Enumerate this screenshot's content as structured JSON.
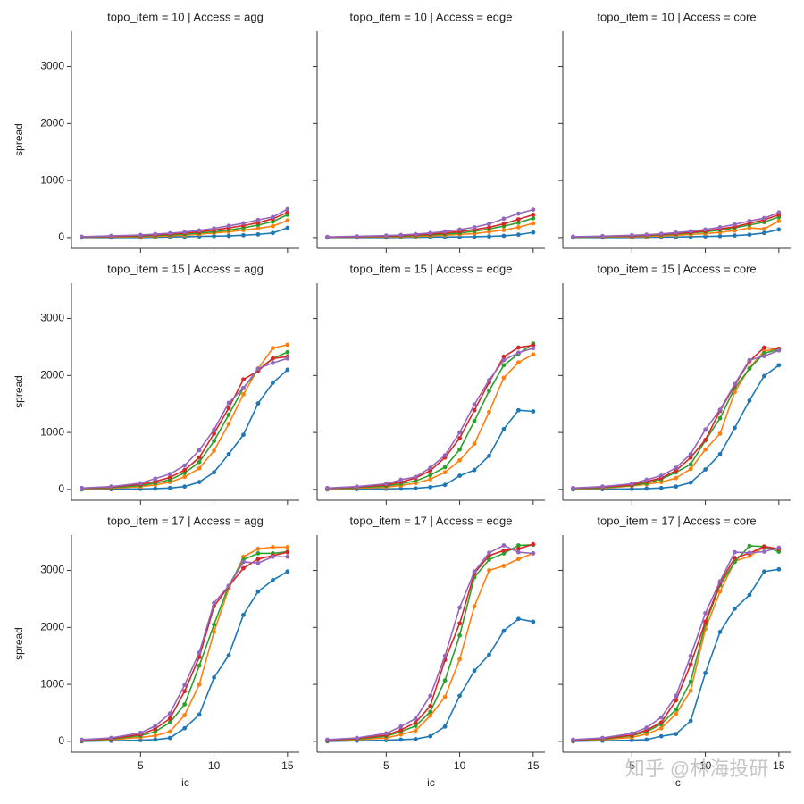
{
  "chart_data": [
    {
      "type": "line",
      "title": "topo_item = 10 | Access = agg",
      "ylabel": "spread",
      "x": [
        1,
        3,
        5,
        6,
        7,
        8,
        9,
        10,
        11,
        12,
        13,
        14,
        15
      ],
      "xlim": [
        0.3,
        15.8
      ],
      "ylim": [
        -190,
        3620
      ],
      "xticks": [
        5,
        10,
        15
      ],
      "yticks": [
        0,
        1000,
        2000,
        3000
      ],
      "series": [
        {
          "color": "#1f77b4",
          "values": [
            0,
            0,
            0,
            5,
            10,
            15,
            20,
            25,
            30,
            40,
            55,
            80,
            170
          ]
        },
        {
          "color": "#ff7f0e",
          "values": [
            5,
            10,
            15,
            20,
            30,
            40,
            60,
            80,
            100,
            130,
            160,
            200,
            300
          ]
        },
        {
          "color": "#2ca02c",
          "values": [
            5,
            15,
            25,
            35,
            45,
            60,
            80,
            100,
            130,
            170,
            220,
            280,
            400
          ]
        },
        {
          "color": "#d62728",
          "values": [
            10,
            20,
            35,
            45,
            60,
            80,
            100,
            130,
            170,
            210,
            260,
            330,
            440
          ]
        },
        {
          "color": "#9467bd",
          "values": [
            15,
            30,
            45,
            60,
            75,
            95,
            125,
            160,
            205,
            250,
            310,
            360,
            500
          ]
        }
      ]
    },
    {
      "type": "line",
      "title": "topo_item = 10 | Access = edge",
      "x": [
        1,
        3,
        5,
        6,
        7,
        8,
        9,
        10,
        11,
        12,
        13,
        14,
        15
      ],
      "xlim": [
        0.3,
        15.8
      ],
      "ylim": [
        -190,
        3620
      ],
      "xticks": [
        5,
        10,
        15
      ],
      "yticks": [
        0,
        1000,
        2000,
        3000
      ],
      "series": [
        {
          "color": "#1f77b4",
          "values": [
            0,
            0,
            0,
            3,
            5,
            8,
            10,
            12,
            15,
            20,
            30,
            50,
            90
          ]
        },
        {
          "color": "#ff7f0e",
          "values": [
            5,
            8,
            12,
            15,
            20,
            30,
            40,
            55,
            70,
            100,
            130,
            180,
            250
          ]
        },
        {
          "color": "#2ca02c",
          "values": [
            5,
            10,
            18,
            25,
            35,
            45,
            60,
            80,
            110,
            150,
            200,
            260,
            340
          ]
        },
        {
          "color": "#d62728",
          "values": [
            8,
            15,
            25,
            35,
            45,
            60,
            80,
            105,
            140,
            180,
            240,
            320,
            400
          ]
        },
        {
          "color": "#9467bd",
          "values": [
            12,
            22,
            35,
            45,
            60,
            80,
            105,
            140,
            180,
            240,
            330,
            420,
            490
          ]
        }
      ]
    },
    {
      "type": "line",
      "title": "topo_item = 10 | Access = core",
      "x": [
        1,
        3,
        5,
        6,
        7,
        8,
        9,
        10,
        11,
        12,
        13,
        14,
        15
      ],
      "xlim": [
        0.3,
        15.8
      ],
      "ylim": [
        -190,
        3620
      ],
      "xticks": [
        5,
        10,
        15
      ],
      "yticks": [
        0,
        1000,
        2000,
        3000
      ],
      "series": [
        {
          "color": "#1f77b4",
          "values": [
            0,
            0,
            0,
            5,
            8,
            10,
            15,
            20,
            25,
            35,
            50,
            80,
            140
          ]
        },
        {
          "color": "#ff7f0e",
          "values": [
            5,
            10,
            15,
            20,
            30,
            40,
            55,
            70,
            90,
            120,
            170,
            150,
            290
          ]
        },
        {
          "color": "#2ca02c",
          "values": [
            5,
            15,
            25,
            35,
            45,
            60,
            80,
            100,
            130,
            170,
            220,
            270,
            360
          ]
        },
        {
          "color": "#d62728",
          "values": [
            10,
            20,
            30,
            40,
            55,
            70,
            90,
            115,
            150,
            190,
            250,
            310,
            400
          ]
        },
        {
          "color": "#9467bd",
          "values": [
            15,
            25,
            40,
            50,
            65,
            85,
            110,
            140,
            180,
            230,
            290,
            340,
            440
          ]
        }
      ]
    },
    {
      "type": "line",
      "title": "topo_item = 15 | Access = agg",
      "ylabel": "spread",
      "x": [
        1,
        3,
        5,
        6,
        7,
        8,
        9,
        10,
        11,
        12,
        13,
        14,
        15
      ],
      "xlim": [
        0.3,
        15.8
      ],
      "ylim": [
        -190,
        3620
      ],
      "xticks": [
        5,
        10,
        15
      ],
      "yticks": [
        0,
        1000,
        2000,
        3000
      ],
      "series": [
        {
          "color": "#1f77b4",
          "values": [
            0,
            5,
            10,
            15,
            25,
            50,
            130,
            300,
            620,
            960,
            1510,
            1870,
            2100
          ]
        },
        {
          "color": "#ff7f0e",
          "values": [
            10,
            20,
            50,
            80,
            130,
            220,
            370,
            680,
            1150,
            1670,
            2120,
            2480,
            2540
          ]
        },
        {
          "color": "#2ca02c",
          "values": [
            15,
            30,
            70,
            110,
            170,
            290,
            480,
            850,
            1310,
            1780,
            2100,
            2300,
            2410
          ]
        },
        {
          "color": "#d62728",
          "values": [
            20,
            40,
            90,
            140,
            210,
            340,
            560,
            980,
            1430,
            1930,
            2080,
            2300,
            2330
          ]
        },
        {
          "color": "#9467bd",
          "values": [
            25,
            50,
            110,
            190,
            270,
            420,
            690,
            1050,
            1520,
            1780,
            2120,
            2220,
            2300
          ]
        }
      ]
    },
    {
      "type": "line",
      "title": "topo_item = 15 | Access = edge",
      "x": [
        1,
        3,
        5,
        6,
        7,
        8,
        9,
        10,
        11,
        12,
        13,
        14,
        15
      ],
      "xlim": [
        0.3,
        15.8
      ],
      "ylim": [
        -190,
        3620
      ],
      "xticks": [
        5,
        10,
        15
      ],
      "yticks": [
        0,
        1000,
        2000,
        3000
      ],
      "series": [
        {
          "color": "#1f77b4",
          "values": [
            0,
            5,
            10,
            15,
            20,
            40,
            80,
            240,
            340,
            590,
            1060,
            1390,
            1370
          ]
        },
        {
          "color": "#ff7f0e",
          "values": [
            10,
            20,
            40,
            70,
            110,
            180,
            300,
            510,
            800,
            1360,
            1960,
            2230,
            2370
          ]
        },
        {
          "color": "#2ca02c",
          "values": [
            15,
            30,
            60,
            100,
            150,
            250,
            390,
            700,
            1200,
            1730,
            2180,
            2380,
            2560
          ]
        },
        {
          "color": "#d62728",
          "values": [
            20,
            40,
            80,
            130,
            200,
            330,
            560,
            900,
            1390,
            1880,
            2330,
            2490,
            2530
          ]
        },
        {
          "color": "#9467bd",
          "values": [
            25,
            50,
            100,
            170,
            220,
            380,
            600,
            1000,
            1490,
            1920,
            2270,
            2400,
            2480
          ]
        }
      ]
    },
    {
      "type": "line",
      "title": "topo_item = 15 | Access = core",
      "x": [
        1,
        3,
        5,
        6,
        7,
        8,
        9,
        10,
        11,
        12,
        13,
        14,
        15
      ],
      "xlim": [
        0.3,
        15.8
      ],
      "ylim": [
        -190,
        3620
      ],
      "xticks": [
        5,
        10,
        15
      ],
      "yticks": [
        0,
        1000,
        2000,
        3000
      ],
      "series": [
        {
          "color": "#1f77b4",
          "values": [
            0,
            5,
            10,
            15,
            25,
            50,
            120,
            350,
            620,
            1080,
            1560,
            1990,
            2180
          ]
        },
        {
          "color": "#ff7f0e",
          "values": [
            10,
            20,
            60,
            90,
            130,
            200,
            360,
            700,
            980,
            1710,
            2130,
            2430,
            2470
          ]
        },
        {
          "color": "#2ca02c",
          "values": [
            15,
            30,
            70,
            110,
            180,
            300,
            440,
            860,
            1250,
            1780,
            2120,
            2390,
            2460
          ]
        },
        {
          "color": "#d62728",
          "values": [
            20,
            40,
            80,
            140,
            200,
            330,
            560,
            870,
            1380,
            1830,
            2250,
            2490,
            2470
          ]
        },
        {
          "color": "#9467bd",
          "values": [
            25,
            50,
            100,
            170,
            240,
            380,
            620,
            1050,
            1400,
            1850,
            2270,
            2340,
            2440
          ]
        }
      ]
    },
    {
      "type": "line",
      "title": "topo_item = 17 | Access = agg",
      "ylabel": "spread",
      "xlabel": "ic",
      "x": [
        1,
        3,
        5,
        6,
        7,
        8,
        9,
        10,
        11,
        12,
        13,
        14,
        15
      ],
      "xlim": [
        0.3,
        15.8
      ],
      "ylim": [
        -190,
        3620
      ],
      "xticks": [
        5,
        10,
        15
      ],
      "yticks": [
        0,
        1000,
        2000,
        3000
      ],
      "series": [
        {
          "color": "#1f77b4",
          "values": [
            0,
            10,
            20,
            30,
            60,
            230,
            470,
            1120,
            1510,
            2220,
            2630,
            2830,
            2980
          ]
        },
        {
          "color": "#ff7f0e",
          "values": [
            10,
            30,
            70,
            100,
            170,
            460,
            1000,
            1920,
            2680,
            3240,
            3380,
            3410,
            3410
          ]
        },
        {
          "color": "#2ca02c",
          "values": [
            15,
            40,
            100,
            170,
            330,
            650,
            1330,
            2050,
            2730,
            3190,
            3300,
            3300,
            3330
          ]
        },
        {
          "color": "#d62728",
          "values": [
            20,
            50,
            120,
            220,
            400,
            880,
            1480,
            2370,
            2720,
            3040,
            3200,
            3260,
            3320
          ]
        },
        {
          "color": "#9467bd",
          "values": [
            30,
            60,
            150,
            270,
            490,
            990,
            1560,
            2430,
            2730,
            3150,
            3130,
            3240,
            3240
          ]
        }
      ]
    },
    {
      "type": "line",
      "title": "topo_item = 17 | Access = edge",
      "xlabel": "ic",
      "x": [
        1,
        3,
        5,
        6,
        7,
        8,
        9,
        10,
        11,
        12,
        13,
        14,
        15
      ],
      "xlim": [
        0.3,
        15.8
      ],
      "ylim": [
        -190,
        3620
      ],
      "xticks": [
        5,
        10,
        15
      ],
      "yticks": [
        0,
        1000,
        2000,
        3000
      ],
      "series": [
        {
          "color": "#1f77b4",
          "values": [
            0,
            10,
            20,
            30,
            40,
            90,
            260,
            800,
            1240,
            1520,
            1940,
            2150,
            2100
          ]
        },
        {
          "color": "#ff7f0e",
          "values": [
            10,
            30,
            60,
            120,
            190,
            450,
            780,
            1440,
            2370,
            3000,
            3080,
            3200,
            3300
          ]
        },
        {
          "color": "#2ca02c",
          "values": [
            15,
            40,
            90,
            170,
            270,
            520,
            1070,
            1860,
            2880,
            3190,
            3300,
            3440,
            3450
          ]
        },
        {
          "color": "#d62728",
          "values": [
            20,
            50,
            110,
            200,
            330,
            620,
            1430,
            2070,
            2950,
            3260,
            3350,
            3380,
            3460
          ]
        },
        {
          "color": "#9467bd",
          "values": [
            30,
            60,
            140,
            260,
            400,
            800,
            1500,
            2350,
            2980,
            3310,
            3440,
            3320,
            3300
          ]
        }
      ]
    },
    {
      "type": "line",
      "title": "topo_item = 17 | Access = core",
      "xlabel": "ic",
      "x": [
        1,
        3,
        5,
        6,
        7,
        8,
        9,
        10,
        11,
        12,
        13,
        14,
        15
      ],
      "xlim": [
        0.3,
        15.8
      ],
      "ylim": [
        -190,
        3620
      ],
      "xticks": [
        5,
        10,
        15
      ],
      "yticks": [
        0,
        1000,
        2000,
        3000
      ],
      "series": [
        {
          "color": "#1f77b4",
          "values": [
            0,
            10,
            20,
            30,
            90,
            130,
            360,
            1200,
            1920,
            2330,
            2570,
            2980,
            3020
          ]
        },
        {
          "color": "#ff7f0e",
          "values": [
            10,
            30,
            70,
            130,
            230,
            480,
            890,
            1970,
            2630,
            3160,
            3250,
            3410,
            3370
          ]
        },
        {
          "color": "#2ca02c",
          "values": [
            15,
            40,
            100,
            170,
            300,
            560,
            1050,
            2060,
            2740,
            3150,
            3430,
            3420,
            3330
          ]
        },
        {
          "color": "#d62728",
          "values": [
            20,
            50,
            110,
            200,
            330,
            720,
            1350,
            2100,
            2780,
            3220,
            3300,
            3420,
            3380
          ]
        },
        {
          "color": "#9467bd",
          "values": [
            30,
            60,
            140,
            240,
            420,
            800,
            1500,
            2250,
            2810,
            3320,
            3310,
            3330,
            3400
          ]
        }
      ]
    }
  ],
  "watermark": "知乎 @林海投研"
}
